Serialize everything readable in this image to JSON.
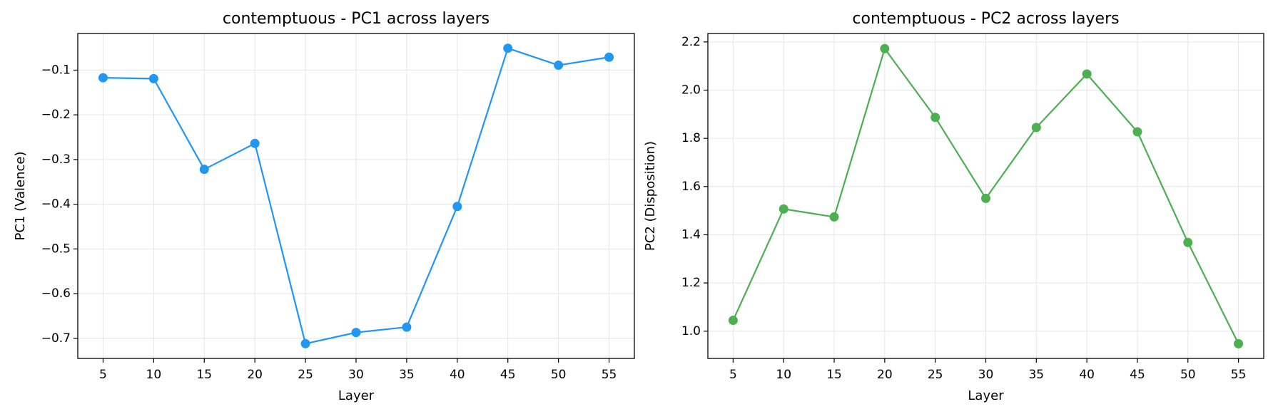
{
  "chart_data": [
    {
      "type": "line",
      "title": "contemptuous - PC1 across layers",
      "xlabel": "Layer",
      "ylabel": "PC1 (Valence)",
      "x": [
        5,
        10,
        15,
        20,
        25,
        30,
        35,
        40,
        45,
        50,
        55
      ],
      "series": [
        {
          "values": [
            -0.117,
            -0.119,
            -0.322,
            -0.264,
            -0.712,
            -0.687,
            -0.675,
            -0.405,
            -0.051,
            -0.089,
            -0.071
          ],
          "color": "#2196F3"
        }
      ],
      "xticks": [
        "5",
        "10",
        "15",
        "20",
        "25",
        "30",
        "35",
        "40",
        "45",
        "50",
        "55"
      ],
      "yticks": [
        -0.7,
        -0.6,
        -0.5,
        -0.4,
        -0.3,
        -0.2,
        -0.1
      ],
      "ytick_labels": [
        "−0.7",
        "−0.6",
        "−0.5",
        "−0.4",
        "−0.3",
        "−0.2",
        "−0.1"
      ],
      "xlim": [
        2.5,
        57.5
      ],
      "ylim": [
        -0.745,
        -0.018
      ],
      "grid": true,
      "marker": "circle"
    },
    {
      "type": "line",
      "title": "contemptuous - PC2 across layers",
      "xlabel": "Layer",
      "ylabel": "PC2 (Disposition)",
      "x": [
        5,
        10,
        15,
        20,
        25,
        30,
        35,
        40,
        45,
        50,
        55
      ],
      "series": [
        {
          "values": [
            1.045,
            1.507,
            1.474,
            2.172,
            1.887,
            1.551,
            1.845,
            2.067,
            1.827,
            1.368,
            0.948
          ],
          "color": "#4CAF50"
        }
      ],
      "xticks": [
        "5",
        "10",
        "15",
        "20",
        "25",
        "30",
        "35",
        "40",
        "45",
        "50",
        "55"
      ],
      "yticks": [
        1.0,
        1.2,
        1.4,
        1.6,
        1.8,
        2.0,
        2.2
      ],
      "ytick_labels": [
        "1.0",
        "1.2",
        "1.4",
        "1.6",
        "1.8",
        "2.0",
        "2.2"
      ],
      "xlim": [
        2.5,
        57.5
      ],
      "ylim": [
        0.887,
        2.235
      ],
      "grid": true,
      "marker": "circle"
    }
  ]
}
